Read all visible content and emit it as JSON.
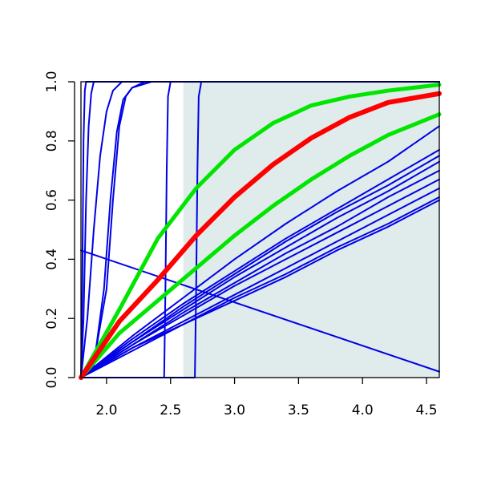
{
  "chart_data": {
    "type": "line",
    "title": "",
    "xlabel": "",
    "ylabel": "",
    "xlim": [
      1.8,
      4.6
    ],
    "ylim": [
      0.0,
      1.0
    ],
    "x_ticks": [
      "2.0",
      "2.5",
      "3.0",
      "3.5",
      "4.0",
      "4.5"
    ],
    "y_ticks": [
      "0.0",
      "0.2",
      "0.4",
      "0.6",
      "0.8",
      "1.0"
    ],
    "x_tick_values": [
      2.0,
      2.5,
      3.0,
      3.5,
      4.0,
      4.5
    ],
    "y_tick_values": [
      0.0,
      0.2,
      0.4,
      0.6,
      0.8,
      1.0
    ],
    "shaded_region": {
      "x": [
        2.6,
        4.6
      ],
      "y": [
        0.0,
        1.0
      ],
      "color": "#dfeceb"
    },
    "grid": false,
    "legend": "none",
    "colors": {
      "blue": "#0000e6",
      "green": "#00e600",
      "red": "#ff0000"
    },
    "series": [
      {
        "color": "#ff0000",
        "role": "central",
        "x": [
          1.8,
          2.1,
          2.4,
          2.7,
          3.0,
          3.3,
          3.6,
          3.9,
          4.2,
          4.6
        ],
        "y": [
          0.0,
          0.19,
          0.33,
          0.48,
          0.61,
          0.72,
          0.81,
          0.88,
          0.93,
          0.96
        ]
      },
      {
        "color": "#00e600",
        "role": "upper",
        "x": [
          1.8,
          2.1,
          2.4,
          2.7,
          3.0,
          3.3,
          3.6,
          3.9,
          4.2,
          4.6
        ],
        "y": [
          0.0,
          0.23,
          0.47,
          0.64,
          0.77,
          0.86,
          0.92,
          0.95,
          0.97,
          0.99
        ]
      },
      {
        "color": "#00e600",
        "role": "lower",
        "x": [
          1.8,
          2.1,
          2.4,
          2.7,
          3.0,
          3.3,
          3.6,
          3.9,
          4.2,
          4.6
        ],
        "y": [
          0.0,
          0.15,
          0.26,
          0.37,
          0.48,
          0.58,
          0.67,
          0.75,
          0.82,
          0.89
        ]
      },
      {
        "color": "#0000e6",
        "x": [
          1.8,
          1.81,
          1.82,
          1.83,
          1.84,
          4.6
        ],
        "y": [
          0.0,
          0.3,
          0.8,
          0.97,
          1.0,
          1.0
        ]
      },
      {
        "color": "#0000e6",
        "x": [
          1.8,
          1.82,
          1.84,
          1.86,
          1.88,
          1.9,
          4.6
        ],
        "y": [
          0.0,
          0.2,
          0.6,
          0.85,
          0.96,
          1.0,
          1.0
        ]
      },
      {
        "color": "#0000e6",
        "x": [
          1.8,
          1.85,
          1.9,
          1.95,
          2.0,
          2.05,
          2.12,
          4.6
        ],
        "y": [
          0.0,
          0.2,
          0.5,
          0.75,
          0.9,
          0.97,
          1.0,
          1.0
        ]
      },
      {
        "color": "#0000e6",
        "x": [
          1.8,
          1.9,
          2.0,
          2.05,
          2.1,
          2.15,
          2.2,
          2.3,
          4.6
        ],
        "y": [
          0.0,
          0.05,
          0.3,
          0.6,
          0.85,
          0.95,
          0.98,
          1.0,
          1.0
        ]
      },
      {
        "color": "#0000e6",
        "x": [
          1.8,
          1.9,
          1.98,
          2.03,
          2.08,
          2.13,
          2.2,
          2.35,
          4.6
        ],
        "y": [
          0.0,
          0.04,
          0.3,
          0.6,
          0.83,
          0.94,
          0.98,
          1.0,
          1.0
        ]
      },
      {
        "color": "#0000e6",
        "x": [
          1.8,
          2.45,
          2.46,
          2.47,
          2.48,
          2.5,
          4.6
        ],
        "y": [
          0.0,
          0.0,
          0.3,
          0.7,
          0.95,
          1.0,
          1.0
        ]
      },
      {
        "color": "#0000e6",
        "x": [
          1.8,
          2.69,
          2.7,
          2.71,
          2.72,
          2.74,
          4.6
        ],
        "y": [
          0.0,
          0.0,
          0.3,
          0.7,
          0.95,
          1.0,
          1.0
        ]
      },
      {
        "color": "#0000e6",
        "x": [
          1.8,
          4.6
        ],
        "y": [
          0.43,
          0.02
        ]
      },
      {
        "color": "#0000e6",
        "x": [
          1.8,
          2.2,
          2.6,
          3.0,
          3.4,
          3.8,
          4.2,
          4.6
        ],
        "y": [
          0.0,
          0.14,
          0.27,
          0.4,
          0.52,
          0.63,
          0.73,
          0.85
        ]
      },
      {
        "color": "#0000e6",
        "x": [
          1.8,
          2.2,
          2.6,
          3.0,
          3.4,
          3.8,
          4.2,
          4.6
        ],
        "y": [
          0.0,
          0.13,
          0.25,
          0.36,
          0.47,
          0.57,
          0.67,
          0.77
        ]
      },
      {
        "color": "#0000e6",
        "x": [
          1.8,
          2.2,
          2.6,
          3.0,
          3.4,
          3.8,
          4.2,
          4.6
        ],
        "y": [
          0.0,
          0.12,
          0.24,
          0.35,
          0.46,
          0.56,
          0.65,
          0.75
        ]
      },
      {
        "color": "#0000e6",
        "x": [
          1.8,
          2.2,
          2.6,
          3.0,
          3.4,
          3.8,
          4.2,
          4.6
        ],
        "y": [
          0.0,
          0.12,
          0.23,
          0.34,
          0.44,
          0.54,
          0.63,
          0.73
        ]
      },
      {
        "color": "#0000e6",
        "x": [
          1.8,
          2.2,
          2.6,
          3.0,
          3.4,
          3.8,
          4.2,
          4.6
        ],
        "y": [
          0.0,
          0.11,
          0.22,
          0.32,
          0.42,
          0.51,
          0.61,
          0.7
        ]
      },
      {
        "color": "#0000e6",
        "x": [
          1.8,
          2.2,
          2.6,
          3.0,
          3.4,
          3.8,
          4.2,
          4.6
        ],
        "y": [
          0.0,
          0.11,
          0.21,
          0.31,
          0.4,
          0.49,
          0.58,
          0.67
        ]
      },
      {
        "color": "#0000e6",
        "x": [
          1.8,
          2.2,
          2.6,
          3.0,
          3.4,
          3.8,
          4.2,
          4.6
        ],
        "y": [
          0.0,
          0.1,
          0.19,
          0.28,
          0.37,
          0.46,
          0.55,
          0.64
        ]
      },
      {
        "color": "#0000e6",
        "x": [
          1.8,
          2.2,
          2.6,
          3.0,
          3.4,
          3.8,
          4.2,
          4.6
        ],
        "y": [
          0.0,
          0.1,
          0.18,
          0.27,
          0.35,
          0.44,
          0.52,
          0.61
        ]
      },
      {
        "color": "#0000e6",
        "x": [
          1.8,
          2.2,
          2.6,
          3.0,
          3.4,
          3.8,
          4.2,
          4.6
        ],
        "y": [
          0.0,
          0.09,
          0.18,
          0.26,
          0.34,
          0.43,
          0.51,
          0.6
        ]
      }
    ]
  }
}
